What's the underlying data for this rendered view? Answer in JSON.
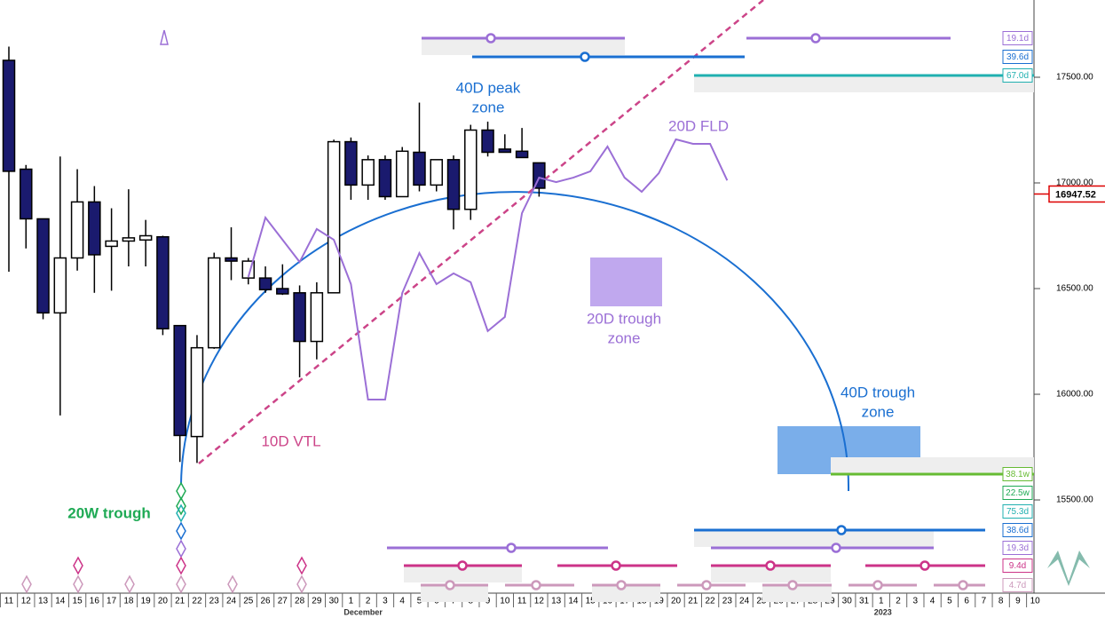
{
  "chart_data": {
    "type": "candlestick",
    "categories": [
      "11",
      "12",
      "13",
      "14",
      "15",
      "16",
      "17",
      "18",
      "19",
      "20",
      "21",
      "22",
      "23",
      "24",
      "25",
      "26",
      "27",
      "28",
      "29",
      "30",
      "1",
      "2",
      "3",
      "4",
      "5",
      "6",
      "7",
      "8",
      "9",
      "10",
      "11",
      "12",
      "13",
      "14",
      "15",
      "16",
      "17",
      "18",
      "19",
      "20",
      "21",
      "22",
      "23",
      "24",
      "25",
      "26",
      "27",
      "28",
      "29",
      "30",
      "31",
      "1",
      "2",
      "3",
      "4",
      "5",
      "6",
      "7",
      "8",
      "9",
      "10"
    ],
    "months": [
      "December",
      "2023"
    ],
    "open": [
      17580,
      17065,
      16830,
      16385,
      16645,
      16910,
      16700,
      16725,
      16730,
      16745,
      16325,
      15800,
      16220,
      16645,
      16550,
      16550,
      16500,
      16480,
      16250,
      16480,
      17195,
      16990,
      17110,
      16935,
      17145,
      16990,
      17110,
      16875,
      17250,
      17160,
      17150,
      17095,
      null,
      null,
      null,
      null,
      null,
      null,
      null,
      null,
      null,
      null,
      null,
      null,
      null,
      null,
      null,
      null,
      null,
      null,
      null,
      null,
      null,
      null,
      null,
      null,
      null,
      null,
      null,
      null,
      null
    ],
    "high": [
      17645,
      17085,
      16830,
      17125,
      17065,
      16985,
      16880,
      16970,
      16825,
      16750,
      16325,
      16280,
      16670,
      16790,
      16645,
      16605,
      16615,
      16515,
      16530,
      17205,
      17215,
      17130,
      17130,
      17170,
      17380,
      17110,
      17130,
      17275,
      17290,
      17230,
      17260,
      17095,
      null,
      null,
      null,
      null,
      null,
      null,
      null,
      null,
      null,
      null,
      null,
      null,
      null,
      null,
      null,
      null,
      null,
      null,
      null,
      null,
      null,
      null,
      null,
      null,
      null,
      null,
      null,
      null,
      null
    ],
    "low": [
      16580,
      16690,
      16355,
      15900,
      16585,
      16480,
      16490,
      16605,
      16605,
      16280,
      15680,
      15675,
      16215,
      16540,
      16520,
      16480,
      16470,
      16080,
      16165,
      16480,
      16920,
      16920,
      16920,
      16935,
      16960,
      16960,
      16780,
      16825,
      17125,
      17145,
      17120,
      16935,
      null,
      null,
      null,
      null,
      null,
      null,
      null,
      null,
      null,
      null,
      null,
      null,
      null,
      null,
      null,
      null,
      null,
      null,
      null,
      null,
      null,
      null,
      null,
      null,
      null,
      null,
      null,
      null,
      null
    ],
    "close": [
      17055,
      16830,
      16385,
      16645,
      16910,
      16660,
      16725,
      16740,
      16750,
      16310,
      15805,
      16220,
      16645,
      16630,
      16630,
      16495,
      16475,
      16250,
      16480,
      17195,
      16990,
      17110,
      16935,
      17150,
      16990,
      17110,
      16875,
      17250,
      17145,
      17145,
      17120,
      16975,
      null,
      null,
      null,
      null,
      null,
      null,
      null,
      null,
      null,
      null,
      null,
      null,
      null,
      null,
      null,
      null,
      null,
      null,
      null,
      null,
      null,
      null,
      null,
      null,
      null,
      null,
      null,
      null,
      null
    ],
    "up_color": "#ffffff",
    "down_color": "#1a1a6e",
    "fld": {
      "color": "#9b6fd6",
      "values": [
        null,
        null,
        null,
        null,
        null,
        null,
        null,
        null,
        null,
        null,
        null,
        null,
        null,
        null,
        16555,
        16836,
        16731,
        16626,
        16782,
        16731,
        16521,
        15975,
        15975,
        16479,
        16668,
        16521,
        16572,
        16530,
        16299,
        16366,
        16857,
        17025,
        17004,
        17025,
        17055,
        17172,
        17025,
        16958,
        17046,
        17206,
        17185,
        17185,
        17012,
        null,
        null,
        null,
        null,
        null,
        null,
        null,
        null,
        null,
        null,
        null,
        null,
        null,
        null,
        null,
        null,
        null,
        null
      ]
    },
    "ylim": [
      15059,
      17865.5
    ],
    "yticks": [
      {
        "value": 15500,
        "label": "15500.00"
      },
      {
        "value": 16000,
        "label": "16000.00"
      },
      {
        "value": 16500,
        "label": "16500.00"
      },
      {
        "value": 17000,
        "label": "17000.00"
      },
      {
        "value": 17500,
        "label": "17500.00"
      }
    ],
    "last": 16947.52,
    "annotations": [
      {
        "lines": [
          "40D peak",
          "zone"
        ],
        "color": "#1a6fd1"
      },
      {
        "lines": [
          "20D FLD"
        ],
        "color": "#9b6fd6"
      },
      {
        "lines": [
          "20D trough",
          "zone"
        ],
        "color": "#9b6fd6"
      },
      {
        "lines": [
          "40D trough",
          "zone"
        ],
        "color": "#1a6fd1"
      },
      {
        "lines": [
          "10D VTL"
        ],
        "color": "#cc4488"
      },
      {
        "lines": [
          "20W trough"
        ],
        "color": "#1faa55"
      }
    ],
    "cycles": [
      {
        "label": "19.1d",
        "color": "#9b6fd6"
      },
      {
        "label": "39.6d",
        "color": "#1a6fd1"
      },
      {
        "label": "67.0d",
        "color": "#20b0b0"
      },
      {
        "label": "38.1w",
        "color": "#66bb33"
      },
      {
        "label": "22.5w",
        "color": "#1faa55"
      },
      {
        "label": "75.3d",
        "color": "#20b0b0"
      },
      {
        "label": "38.6d",
        "color": "#1a6fd1"
      },
      {
        "label": "19.3d",
        "color": "#9b6fd6"
      },
      {
        "label": "9.4d",
        "color": "#cc3388"
      },
      {
        "label": "4.7d",
        "color": "#cc99bb"
      }
    ]
  }
}
